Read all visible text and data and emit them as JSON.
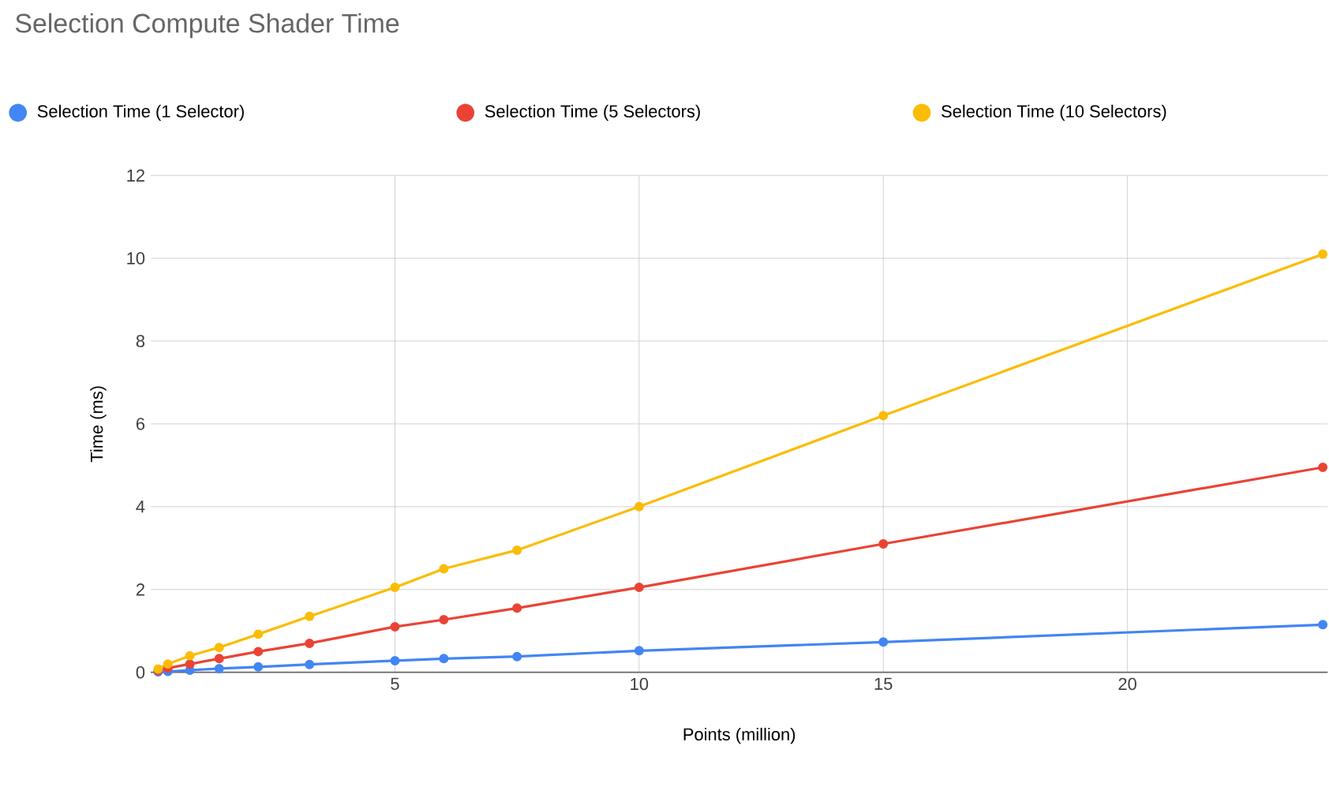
{
  "chart_data": {
    "type": "line",
    "title": "Selection Compute Shader Time",
    "xlabel": "Points (million)",
    "ylabel": "Time (ms)",
    "x": [
      0.15,
      0.35,
      0.8,
      1.4,
      2.2,
      3.25,
      5,
      6,
      7.5,
      10,
      15,
      24
    ],
    "series": [
      {
        "name": "Selection Time (1 Selector)",
        "color": "#4285f4",
        "values": [
          0.01,
          0.02,
          0.05,
          0.09,
          0.13,
          0.19,
          0.28,
          0.33,
          0.38,
          0.52,
          0.73,
          1.15
        ]
      },
      {
        "name": "Selection Time (5 Selectors)",
        "color": "#ea4335",
        "values": [
          0.04,
          0.1,
          0.2,
          0.33,
          0.5,
          0.7,
          1.1,
          1.27,
          1.55,
          2.05,
          3.1,
          4.95
        ]
      },
      {
        "name": "Selection Time (10 Selectors)",
        "color": "#fbbc04",
        "values": [
          0.08,
          0.2,
          0.4,
          0.6,
          0.92,
          1.35,
          2.05,
          2.5,
          2.95,
          4.0,
          6.2,
          10.1
        ]
      }
    ],
    "xlim": [
      0,
      24.1
    ],
    "ylim": [
      0,
      12
    ],
    "xticks": [
      5,
      10,
      15,
      20
    ],
    "yticks": [
      0,
      2,
      4,
      6,
      8,
      10,
      12
    ],
    "grid": true,
    "legend": "top",
    "marker": "circle",
    "line_style": "solid"
  }
}
